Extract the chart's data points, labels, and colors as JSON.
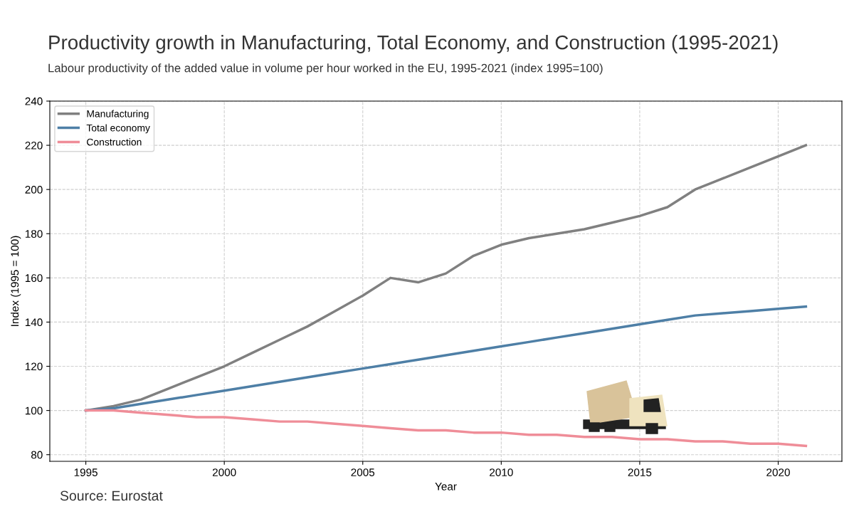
{
  "chart_data": {
    "type": "line",
    "title": "Productivity growth in Manufacturing, Total Economy, and Construction (1995-2021)",
    "subtitle": "Labour productivity of the added value in volume per hour worked in the EU, 1995-2021 (index 1995=100)",
    "xlabel": "Year",
    "ylabel": "Index (1995 = 100)",
    "x": [
      1995,
      1996,
      1997,
      1998,
      1999,
      2000,
      2001,
      2002,
      2003,
      2004,
      2005,
      2006,
      2007,
      2008,
      2009,
      2010,
      2011,
      2012,
      2013,
      2014,
      2015,
      2016,
      2017,
      2018,
      2019,
      2020,
      2021
    ],
    "series": [
      {
        "name": "Manufacturing",
        "color": "#808080",
        "values": [
          100,
          102,
          105,
          110,
          115,
          120,
          126,
          132,
          138,
          145,
          152,
          160,
          158,
          162,
          170,
          175,
          178,
          180,
          182,
          185,
          188,
          192,
          200,
          205,
          210,
          215,
          220
        ]
      },
      {
        "name": "Total economy",
        "color": "#4e7fa6",
        "values": [
          100,
          101,
          103,
          105,
          107,
          109,
          111,
          113,
          115,
          117,
          119,
          121,
          123,
          125,
          127,
          129,
          131,
          133,
          135,
          137,
          139,
          141,
          143,
          144,
          145,
          146,
          147
        ]
      },
      {
        "name": "Construction",
        "color": "#ef8d98",
        "values": [
          100,
          100,
          99,
          98,
          97,
          97,
          96,
          95,
          95,
          94,
          93,
          92,
          91,
          91,
          90,
          90,
          89,
          89,
          88,
          88,
          87,
          87,
          86,
          86,
          85,
          85,
          84
        ]
      }
    ],
    "xlim": [
      1993.7,
      2022.3
    ],
    "xticks": [
      1995,
      2000,
      2005,
      2010,
      2015,
      2020
    ],
    "ylim": [
      77,
      240
    ],
    "yticks": [
      80,
      100,
      120,
      140,
      160,
      180,
      200,
      220,
      240
    ],
    "grid": true,
    "legend": "top left",
    "marker": "none",
    "line_style": "solid",
    "annotations": [
      "Source: Eurostat"
    ]
  }
}
